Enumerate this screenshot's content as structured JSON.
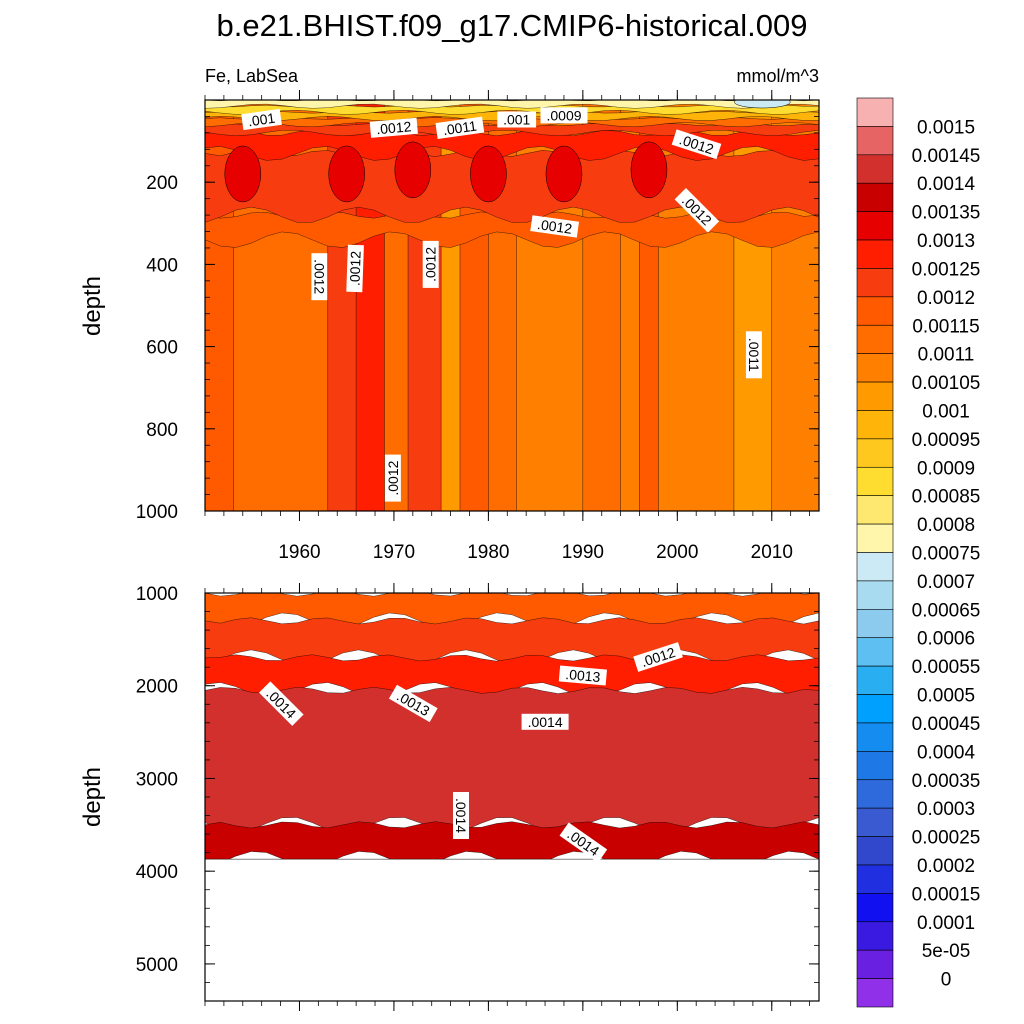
{
  "title": "b.e21.BHIST.f09_g17.CMIP6-historical.009",
  "panel_left_label": "Fe, LabSea",
  "panel_right_label": "mmol/m^3",
  "chart_data": [
    {
      "type": "heatmap",
      "subtype": "filled-contour",
      "panel": "upper",
      "variable": "Fe",
      "region": "LabSea",
      "units": "mmol/m^3",
      "ylabel": "depth",
      "xlabel": "",
      "x_tick_labels": [
        "1960",
        "1970",
        "1980",
        "1990",
        "2000",
        "2010"
      ],
      "x_ticks": [
        1960,
        1970,
        1980,
        1990,
        2000,
        2010
      ],
      "xlim": [
        1950,
        2015
      ],
      "y_tick_labels": [
        "200",
        "400",
        "600",
        "800",
        "1000"
      ],
      "y_ticks": [
        200,
        400,
        600,
        800,
        1000
      ],
      "ylim": [
        0,
        1000
      ],
      "y_reversed": true,
      "background_value": 0.00112,
      "columns": [
        {
          "x": [
            1950,
            1953
          ],
          "value": 0.00117
        },
        {
          "x": [
            1953,
            1963
          ],
          "value": 0.00112
        },
        {
          "x": [
            1963,
            1966
          ],
          "value": 0.00122
        },
        {
          "x": [
            1966,
            1969
          ],
          "value": 0.00128
        },
        {
          "x": [
            1969,
            1971.5
          ],
          "value": 0.00112
        },
        {
          "x": [
            1971.5,
            1975
          ],
          "value": 0.00122
        },
        {
          "x": [
            1975,
            1977
          ],
          "value": 0.00104
        },
        {
          "x": [
            1977,
            1980
          ],
          "value": 0.00117
        },
        {
          "x": [
            1980,
            1983
          ],
          "value": 0.00112
        },
        {
          "x": [
            1983,
            1990
          ],
          "value": 0.00108
        },
        {
          "x": [
            1990,
            1994
          ],
          "value": 0.00112
        },
        {
          "x": [
            1994,
            1996
          ],
          "value": 0.00108
        },
        {
          "x": [
            1996,
            1998
          ],
          "value": 0.00117
        },
        {
          "x": [
            1998,
            2006
          ],
          "value": 0.00108
        },
        {
          "x": [
            2006,
            2010
          ],
          "value": 0.00104
        },
        {
          "x": [
            2010,
            2015
          ],
          "value": 0.00108
        }
      ],
      "layers": [
        {
          "y": [
            280,
            340
          ],
          "value": 0.00117
        },
        {
          "y": [
            130,
            280
          ],
          "value": 0.00122
        },
        {
          "y": [
            80,
            130
          ],
          "value": 0.00127
        },
        {
          "y": [
            60,
            80
          ],
          "value": 0.00122
        },
        {
          "y": [
            45,
            60
          ],
          "value": 0.00112
        },
        {
          "y": [
            30,
            45
          ],
          "value": 0.00098
        },
        {
          "y": [
            15,
            30
          ],
          "value": 0.00088
        },
        {
          "y": [
            0,
            15
          ],
          "value": 0.00078
        }
      ],
      "cores": [
        {
          "x": 1954,
          "y": 180,
          "value": 0.00132
        },
        {
          "x": 1965,
          "y": 180,
          "value": 0.00132
        },
        {
          "x": 1972,
          "y": 170,
          "value": 0.00132
        },
        {
          "x": 1980,
          "y": 180,
          "value": 0.00132
        },
        {
          "x": 1988,
          "y": 180,
          "value": 0.00132
        },
        {
          "x": 1997,
          "y": 170,
          "value": 0.00132
        }
      ],
      "surface_patches": [
        {
          "x": 2009,
          "y": 5,
          "value": 0.00072
        }
      ],
      "contour_labels": [
        {
          "text": ".001",
          "x": 1956,
          "y": 50,
          "angle": -8
        },
        {
          "text": ".0012",
          "x": 1970,
          "y": 70,
          "angle": -5
        },
        {
          "text": ".0011",
          "x": 1977,
          "y": 70,
          "angle": -8
        },
        {
          "text": ".001",
          "x": 1983,
          "y": 50,
          "angle": 0
        },
        {
          "text": ".0009",
          "x": 1988,
          "y": 40,
          "angle": 0
        },
        {
          "text": ".0012",
          "x": 2002,
          "y": 110,
          "angle": 18
        },
        {
          "text": ".0012",
          "x": 2002,
          "y": 270,
          "angle": 45
        },
        {
          "text": ".0012",
          "x": 1987,
          "y": 310,
          "angle": 8
        },
        {
          "text": ".0012",
          "x": 1962,
          "y": 430,
          "angle": 90
        },
        {
          "text": ".0012",
          "x": 1966,
          "y": 410,
          "angle": -88
        },
        {
          "text": ".0012",
          "x": 1974,
          "y": 400,
          "angle": -90
        },
        {
          "text": ".0011",
          "x": 2008,
          "y": 620,
          "angle": 90
        },
        {
          "text": ".0012",
          "x": 1970,
          "y": 920,
          "angle": -90
        }
      ]
    },
    {
      "type": "heatmap",
      "subtype": "filled-contour",
      "panel": "lower",
      "variable": "Fe",
      "region": "LabSea",
      "units": "mmol/m^3",
      "ylabel": "depth",
      "xlabel": "",
      "x_ticks": [
        1960,
        1970,
        1980,
        1990,
        2000,
        2010
      ],
      "xlim": [
        1950,
        2015
      ],
      "y_tick_labels": [
        "1000",
        "2000",
        "3000",
        "4000",
        "5000"
      ],
      "y_ticks": [
        1000,
        2000,
        3000,
        4000,
        5000
      ],
      "ylim": [
        1000,
        5400
      ],
      "y_reversed": true,
      "missing_below_depth": 3870,
      "layers": [
        {
          "y": [
            1000,
            1300
          ],
          "value": 0.00117
        },
        {
          "y": [
            1300,
            1700
          ],
          "value": 0.00122
        },
        {
          "y": [
            1700,
            2050
          ],
          "value": 0.00127
        },
        {
          "y": [
            2050,
            3500
          ],
          "value": 0.00142
        },
        {
          "y": [
            3500,
            3870
          ],
          "value": 0.00137
        }
      ],
      "contour_labels": [
        {
          "text": ".0014",
          "x": 1958,
          "y": 2200,
          "angle": 45
        },
        {
          "text": ".0013",
          "x": 1972,
          "y": 2200,
          "angle": 30
        },
        {
          "text": ".0014",
          "x": 1986,
          "y": 2400,
          "angle": 0
        },
        {
          "text": ".0013",
          "x": 1990,
          "y": 1900,
          "angle": 5
        },
        {
          "text": ".0012",
          "x": 1998,
          "y": 1700,
          "angle": -18
        },
        {
          "text": ".0014",
          "x": 1977,
          "y": 3400,
          "angle": 90
        },
        {
          "text": ".0014",
          "x": 1990,
          "y": 3700,
          "angle": 35
        }
      ]
    }
  ],
  "colorbar": {
    "labels": [
      "0.0015",
      "0.00145",
      "0.0014",
      "0.00135",
      "0.0013",
      "0.00125",
      "0.0012",
      "0.00115",
      "0.0011",
      "0.00105",
      "0.001",
      "0.00095",
      "0.0009",
      "0.00085",
      "0.0008",
      "0.00075",
      "0.0007",
      "0.00065",
      "0.0006",
      "0.00055",
      "0.0005",
      "0.00045",
      "0.0004",
      "0.00035",
      "0.0003",
      "0.00025",
      "0.0002",
      "0.00015",
      "0.0001",
      "5e-05",
      "0"
    ],
    "colors": [
      "#f8b1b1",
      "#e66464",
      "#d2302d",
      "#c80000",
      "#e60000",
      "#ff1e00",
      "#f73c0f",
      "#ff5a00",
      "#ff6c00",
      "#ff8000",
      "#ff9a00",
      "#ffb40a",
      "#ffc81e",
      "#ffdc30",
      "#ffe870",
      "#fff6ac",
      "#cceaf6",
      "#a8dbf0",
      "#8ccaee",
      "#5ec0f2",
      "#2aaef2",
      "#00a0ff",
      "#148cf0",
      "#1e78e6",
      "#2e6adc",
      "#3a5ad2",
      "#3248cc",
      "#2030e0",
      "#1010f0",
      "#3a1ae0",
      "#6a20e0",
      "#9030e8"
    ]
  }
}
